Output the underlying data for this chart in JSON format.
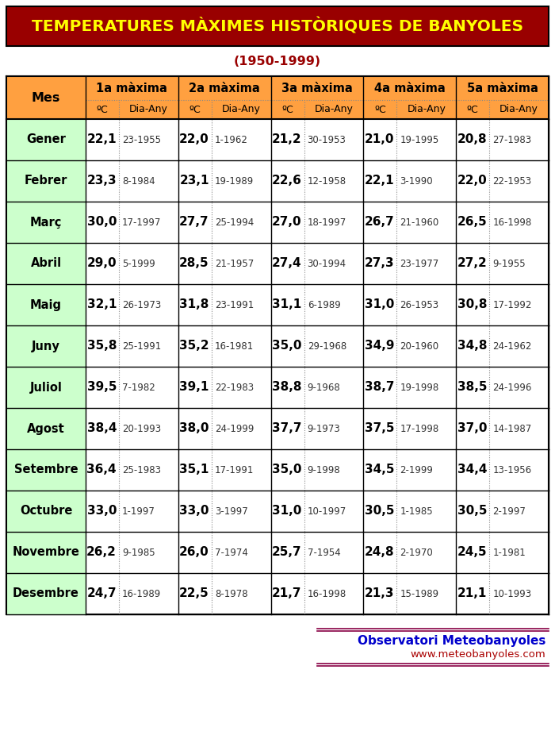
{
  "title": "TEMPERATURES MÀXIMES HISTÒRIQUES DE BANYOLES",
  "subtitle": "(1950-1999)",
  "footer_line1": "Observatori Meteobanyoles",
  "footer_line2": "www.meteobanyoles.com",
  "col_headers": [
    "Mes",
    "1a màxima",
    "2a màxima",
    "3a màxima",
    "4a màxima",
    "5a màxima"
  ],
  "months": [
    "Gener",
    "Febrer",
    "Març",
    "Abril",
    "Maig",
    "Juny",
    "Juliol",
    "Agost",
    "Setembre",
    "Octubre",
    "Novembre",
    "Desembre"
  ],
  "data": [
    [
      [
        "22,1",
        "23-1955"
      ],
      [
        "22,0",
        "1-1962"
      ],
      [
        "21,2",
        "30-1953"
      ],
      [
        "21,0",
        "19-1995"
      ],
      [
        "20,8",
        "27-1983"
      ]
    ],
    [
      [
        "23,3",
        "8-1984"
      ],
      [
        "23,1",
        "19-1989"
      ],
      [
        "22,6",
        "12-1958"
      ],
      [
        "22,1",
        "3-1990"
      ],
      [
        "22,0",
        "22-1953"
      ]
    ],
    [
      [
        "30,0",
        "17-1997"
      ],
      [
        "27,7",
        "25-1994"
      ],
      [
        "27,0",
        "18-1997"
      ],
      [
        "26,7",
        "21-1960"
      ],
      [
        "26,5",
        "16-1998"
      ]
    ],
    [
      [
        "29,0",
        "5-1999"
      ],
      [
        "28,5",
        "21-1957"
      ],
      [
        "27,4",
        "30-1994"
      ],
      [
        "27,3",
        "23-1977"
      ],
      [
        "27,2",
        "9-1955"
      ]
    ],
    [
      [
        "32,1",
        "26-1973"
      ],
      [
        "31,8",
        "23-1991"
      ],
      [
        "31,1",
        "6-1989"
      ],
      [
        "31,0",
        "26-1953"
      ],
      [
        "30,8",
        "17-1992"
      ]
    ],
    [
      [
        "35,8",
        "25-1991"
      ],
      [
        "35,2",
        "16-1981"
      ],
      [
        "35,0",
        "29-1968"
      ],
      [
        "34,9",
        "20-1960"
      ],
      [
        "34,8",
        "24-1962"
      ]
    ],
    [
      [
        "39,5",
        "7-1982"
      ],
      [
        "39,1",
        "22-1983"
      ],
      [
        "38,8",
        "9-1968"
      ],
      [
        "38,7",
        "19-1998"
      ],
      [
        "38,5",
        "24-1996"
      ]
    ],
    [
      [
        "38,4",
        "20-1993"
      ],
      [
        "38,0",
        "24-1999"
      ],
      [
        "37,7",
        "9-1973"
      ],
      [
        "37,5",
        "17-1998"
      ],
      [
        "37,0",
        "14-1987"
      ]
    ],
    [
      [
        "36,4",
        "25-1983"
      ],
      [
        "35,1",
        "17-1991"
      ],
      [
        "35,0",
        "9-1998"
      ],
      [
        "34,5",
        "2-1999"
      ],
      [
        "34,4",
        "13-1956"
      ]
    ],
    [
      [
        "33,0",
        "1-1997"
      ],
      [
        "33,0",
        "3-1997"
      ],
      [
        "31,0",
        "10-1997"
      ],
      [
        "30,5",
        "1-1985"
      ],
      [
        "30,5",
        "2-1997"
      ]
    ],
    [
      [
        "26,2",
        "9-1985"
      ],
      [
        "26,0",
        "7-1974"
      ],
      [
        "25,7",
        "7-1954"
      ],
      [
        "24,8",
        "2-1970"
      ],
      [
        "24,5",
        "1-1981"
      ]
    ],
    [
      [
        "24,7",
        "16-1989"
      ],
      [
        "22,5",
        "8-1978"
      ],
      [
        "21,7",
        "16-1998"
      ],
      [
        "21,3",
        "15-1989"
      ],
      [
        "21,1",
        "10-1993"
      ]
    ]
  ],
  "title_bg": "#990000",
  "title_color": "#FFFF00",
  "header_bg": "#FFA040",
  "month_col_bg": "#CCFFCC",
  "data_row_bg": "#FFFFFF",
  "border_color": "#000000",
  "dotted_color": "#888888",
  "footer_color1": "#0000CC",
  "footer_color2": "#AA0000",
  "footer_line_color": "#880044"
}
